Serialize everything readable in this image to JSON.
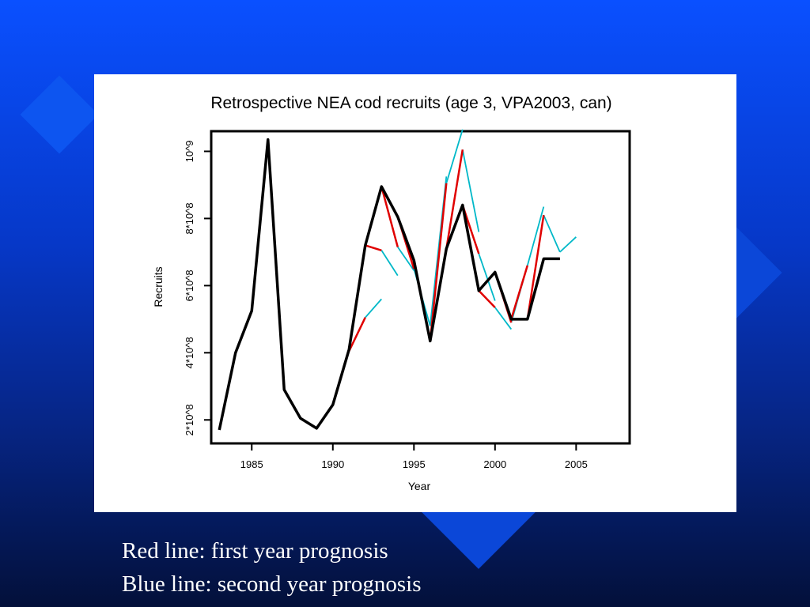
{
  "captions": {
    "line1": "Red line: first year prognosis",
    "line2": "Blue line: second year prognosis"
  },
  "colors": {
    "background": "#0638c8",
    "vpa": "#000000",
    "first_year": "#e00000",
    "second_year": "#00b8c8"
  },
  "chart_data": {
    "type": "line",
    "title": "Retrospective NEA cod recruits (age 3, VPA2003, can)",
    "xlabel": "Year",
    "ylabel": "Recruits",
    "xlim": [
      1982.5,
      2008.3
    ],
    "ylim": [
      130000000,
      1060000000
    ],
    "x_ticks": [
      1985,
      1990,
      1995,
      2000,
      2005
    ],
    "y_ticks": [
      {
        "value": 200000000,
        "label": "2*10^8"
      },
      {
        "value": 400000000,
        "label": "4*10^8"
      },
      {
        "value": 600000000,
        "label": "6*10^8"
      },
      {
        "value": 800000000,
        "label": "8*10^8"
      },
      {
        "value": 1000000000,
        "label": "10^9"
      }
    ],
    "grid": false,
    "legend": "none",
    "series": [
      {
        "role": "vpa",
        "x": [
          1983,
          1984,
          1985,
          1986,
          1987,
          1988,
          1989,
          1990,
          1991,
          1992,
          1993,
          1994,
          1995,
          1996,
          1997,
          1998,
          1999,
          2000,
          2001,
          2002,
          2003,
          2004
        ],
        "y": [
          170000000,
          400000000,
          525000000,
          1035000000,
          290000000,
          205000000,
          175000000,
          245000000,
          410000000,
          720000000,
          895000000,
          805000000,
          675000000,
          435000000,
          710000000,
          840000000,
          585000000,
          640000000,
          500000000,
          500000000,
          680000000,
          680000000
        ]
      },
      {
        "role": "first_year",
        "segments": [
          {
            "x": [
              1991,
              1992
            ],
            "y": [
              405000000,
              505000000
            ]
          },
          {
            "x": [
              1992,
              1993
            ],
            "y": [
              720000000,
              705000000
            ]
          },
          {
            "x": [
              1993,
              1994
            ],
            "y": [
              895000000,
              715000000
            ]
          },
          {
            "x": [
              1994,
              1995
            ],
            "y": [
              805000000,
              650000000
            ]
          },
          {
            "x": [
              1995,
              1996
            ],
            "y": [
              675000000,
              435000000
            ]
          },
          {
            "x": [
              1996,
              1997
            ],
            "y": [
              435000000,
              905000000
            ]
          },
          {
            "x": [
              1997,
              1998
            ],
            "y": [
              710000000,
              1005000000
            ]
          },
          {
            "x": [
              1998,
              1999
            ],
            "y": [
              840000000,
              695000000
            ]
          },
          {
            "x": [
              1999,
              2000
            ],
            "y": [
              585000000,
              535000000
            ]
          },
          {
            "x": [
              2000,
              2001
            ],
            "y": [
              640000000,
              490000000
            ]
          },
          {
            "x": [
              2001,
              2002
            ],
            "y": [
              500000000,
              660000000
            ]
          },
          {
            "x": [
              2002,
              2003
            ],
            "y": [
              500000000,
              810000000
            ]
          },
          {
            "x": [
              2003,
              2004
            ],
            "y": [
              680000000,
              680000000
            ]
          }
        ]
      },
      {
        "role": "second_year",
        "segments": [
          {
            "x": [
              1992,
              1993
            ],
            "y": [
              505000000,
              560000000
            ]
          },
          {
            "x": [
              1993,
              1994
            ],
            "y": [
              705000000,
              630000000
            ]
          },
          {
            "x": [
              1994,
              1995
            ],
            "y": [
              715000000,
              645000000
            ]
          },
          {
            "x": [
              1995,
              1996
            ],
            "y": [
              650000000,
              480000000
            ]
          },
          {
            "x": [
              1996,
              1997
            ],
            "y": [
              480000000,
              925000000
            ]
          },
          {
            "x": [
              1997,
              1998
            ],
            "y": [
              905000000,
              1065000000
            ]
          },
          {
            "x": [
              1998,
              1999
            ],
            "y": [
              1005000000,
              760000000
            ]
          },
          {
            "x": [
              1999,
              2000
            ],
            "y": [
              695000000,
              555000000
            ]
          },
          {
            "x": [
              2000,
              2001
            ],
            "y": [
              535000000,
              470000000
            ]
          },
          {
            "x": [
              2001,
              2002
            ],
            "y": [
              490000000,
              660000000
            ]
          },
          {
            "x": [
              2002,
              2003
            ],
            "y": [
              660000000,
              835000000
            ]
          },
          {
            "x": [
              2003,
              2004
            ],
            "y": [
              810000000,
              700000000
            ]
          },
          {
            "x": [
              2004,
              2005
            ],
            "y": [
              700000000,
              745000000
            ]
          }
        ]
      }
    ]
  }
}
